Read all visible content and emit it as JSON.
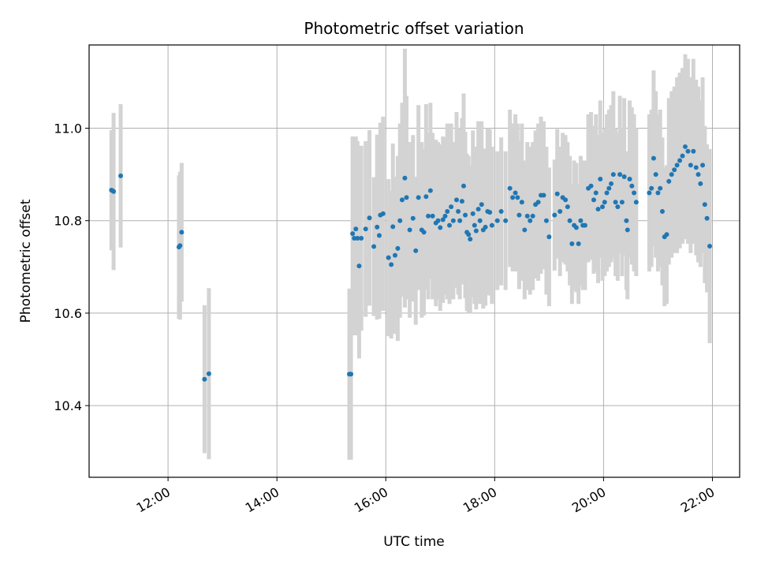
{
  "chart_data": {
    "type": "scatter",
    "title": "Photometric offset variation",
    "xlabel": "UTC time",
    "ylabel": "Photometric offset",
    "x_unit": "hours",
    "xlim": [
      10.55,
      22.5
    ],
    "ylim": [
      10.245,
      11.18
    ],
    "grid": true,
    "x_ticks": [
      {
        "value": 12,
        "label": "12:00"
      },
      {
        "value": 14,
        "label": "14:00"
      },
      {
        "value": 16,
        "label": "16:00"
      },
      {
        "value": 18,
        "label": "18:00"
      },
      {
        "value": 20,
        "label": "20:00"
      },
      {
        "value": 22,
        "label": "22:00"
      }
    ],
    "y_ticks": [
      {
        "value": 10.4,
        "label": "10.4"
      },
      {
        "value": 10.6,
        "label": "10.6"
      },
      {
        "value": 10.8,
        "label": "10.8"
      },
      {
        "value": 11.0,
        "label": "11.0"
      }
    ],
    "point_color": "#1f77b4",
    "errorbar_color": "#d3d3d3",
    "points": [
      {
        "x": 10.96,
        "y": 10.866,
        "err": 0.13
      },
      {
        "x": 10.98,
        "y": 10.865,
        "err": 0.12
      },
      {
        "x": 11.0,
        "y": 10.863,
        "err": 0.17
      },
      {
        "x": 11.13,
        "y": 10.897,
        "err": 0.155
      },
      {
        "x": 12.2,
        "y": 10.743,
        "err": 0.155
      },
      {
        "x": 12.22,
        "y": 10.746,
        "err": 0.16
      },
      {
        "x": 12.25,
        "y": 10.775,
        "err": 0.15
      },
      {
        "x": 12.67,
        "y": 10.457,
        "err": 0.16
      },
      {
        "x": 12.75,
        "y": 10.469,
        "err": 0.185
      },
      {
        "x": 15.33,
        "y": 10.468,
        "err": 0.185
      },
      {
        "x": 15.36,
        "y": 10.468,
        "err": 0.185
      },
      {
        "x": 15.39,
        "y": 10.772,
        "err": 0.21
      },
      {
        "x": 15.42,
        "y": 10.762,
        "err": 0.21
      },
      {
        "x": 15.45,
        "y": 10.782,
        "err": 0.2
      },
      {
        "x": 15.48,
        "y": 10.762,
        "err": 0.21
      },
      {
        "x": 15.51,
        "y": 10.702,
        "err": 0.2
      },
      {
        "x": 15.55,
        "y": 10.762,
        "err": 0.2
      },
      {
        "x": 15.63,
        "y": 10.782,
        "err": 0.19
      },
      {
        "x": 15.7,
        "y": 10.806,
        "err": 0.19
      },
      {
        "x": 15.78,
        "y": 10.744,
        "err": 0.15
      },
      {
        "x": 15.84,
        "y": 10.786,
        "err": 0.2
      },
      {
        "x": 15.88,
        "y": 10.768,
        "err": 0.18
      },
      {
        "x": 15.9,
        "y": 10.812,
        "err": 0.2
      },
      {
        "x": 15.95,
        "y": 10.815,
        "err": 0.21
      },
      {
        "x": 16.05,
        "y": 10.72,
        "err": 0.17
      },
      {
        "x": 16.1,
        "y": 10.705,
        "err": 0.16
      },
      {
        "x": 16.13,
        "y": 10.787,
        "err": 0.18
      },
      {
        "x": 16.17,
        "y": 10.725,
        "err": 0.17
      },
      {
        "x": 16.22,
        "y": 10.74,
        "err": 0.2
      },
      {
        "x": 16.26,
        "y": 10.8,
        "err": 0.21
      },
      {
        "x": 16.3,
        "y": 10.845,
        "err": 0.21
      },
      {
        "x": 16.35,
        "y": 10.892,
        "err": 0.28
      },
      {
        "x": 16.38,
        "y": 10.85,
        "err": 0.22
      },
      {
        "x": 16.44,
        "y": 10.78,
        "err": 0.19
      },
      {
        "x": 16.5,
        "y": 10.805,
        "err": 0.18
      },
      {
        "x": 16.55,
        "y": 10.735,
        "err": 0.16
      },
      {
        "x": 16.6,
        "y": 10.85,
        "err": 0.2
      },
      {
        "x": 16.66,
        "y": 10.78,
        "err": 0.19
      },
      {
        "x": 16.7,
        "y": 10.775,
        "err": 0.18
      },
      {
        "x": 16.74,
        "y": 10.852,
        "err": 0.2
      },
      {
        "x": 16.78,
        "y": 10.81,
        "err": 0.18
      },
      {
        "x": 16.82,
        "y": 10.865,
        "err": 0.19
      },
      {
        "x": 16.86,
        "y": 10.81,
        "err": 0.18
      },
      {
        "x": 16.92,
        "y": 10.795,
        "err": 0.18
      },
      {
        "x": 16.96,
        "y": 10.8,
        "err": 0.17
      },
      {
        "x": 17.0,
        "y": 10.785,
        "err": 0.18
      },
      {
        "x": 17.05,
        "y": 10.802,
        "err": 0.18
      },
      {
        "x": 17.09,
        "y": 10.81,
        "err": 0.17
      },
      {
        "x": 17.13,
        "y": 10.82,
        "err": 0.19
      },
      {
        "x": 17.17,
        "y": 10.79,
        "err": 0.17
      },
      {
        "x": 17.2,
        "y": 10.83,
        "err": 0.18
      },
      {
        "x": 17.24,
        "y": 10.8,
        "err": 0.17
      },
      {
        "x": 17.3,
        "y": 10.845,
        "err": 0.19
      },
      {
        "x": 17.33,
        "y": 10.82,
        "err": 0.18
      },
      {
        "x": 17.36,
        "y": 10.8,
        "err": 0.17
      },
      {
        "x": 17.4,
        "y": 10.842,
        "err": 0.18
      },
      {
        "x": 17.43,
        "y": 10.875,
        "err": 0.2
      },
      {
        "x": 17.46,
        "y": 10.812,
        "err": 0.18
      },
      {
        "x": 17.49,
        "y": 10.775,
        "err": 0.17
      },
      {
        "x": 17.52,
        "y": 10.77,
        "err": 0.17
      },
      {
        "x": 17.55,
        "y": 10.76,
        "err": 0.16
      },
      {
        "x": 17.6,
        "y": 10.815,
        "err": 0.18
      },
      {
        "x": 17.63,
        "y": 10.79,
        "err": 0.17
      },
      {
        "x": 17.66,
        "y": 10.778,
        "err": 0.17
      },
      {
        "x": 17.7,
        "y": 10.825,
        "err": 0.19
      },
      {
        "x": 17.73,
        "y": 10.8,
        "err": 0.18
      },
      {
        "x": 17.76,
        "y": 10.835,
        "err": 0.18
      },
      {
        "x": 17.79,
        "y": 10.78,
        "err": 0.17
      },
      {
        "x": 17.83,
        "y": 10.786,
        "err": 0.17
      },
      {
        "x": 17.87,
        "y": 10.82,
        "err": 0.18
      },
      {
        "x": 17.91,
        "y": 10.818,
        "err": 0.18
      },
      {
        "x": 17.95,
        "y": 10.79,
        "err": 0.17
      },
      {
        "x": 18.05,
        "y": 10.8,
        "err": 0.15
      },
      {
        "x": 18.12,
        "y": 10.82,
        "err": 0.16
      },
      {
        "x": 18.2,
        "y": 10.8,
        "err": 0.15
      },
      {
        "x": 18.28,
        "y": 10.87,
        "err": 0.17
      },
      {
        "x": 18.33,
        "y": 10.85,
        "err": 0.16
      },
      {
        "x": 18.38,
        "y": 10.86,
        "err": 0.17
      },
      {
        "x": 18.42,
        "y": 10.85,
        "err": 0.16
      },
      {
        "x": 18.45,
        "y": 10.812,
        "err": 0.16
      },
      {
        "x": 18.5,
        "y": 10.84,
        "err": 0.17
      },
      {
        "x": 18.55,
        "y": 10.78,
        "err": 0.15
      },
      {
        "x": 18.6,
        "y": 10.81,
        "err": 0.16
      },
      {
        "x": 18.65,
        "y": 10.8,
        "err": 0.16
      },
      {
        "x": 18.7,
        "y": 10.81,
        "err": 0.16
      },
      {
        "x": 18.75,
        "y": 10.835,
        "err": 0.16
      },
      {
        "x": 18.8,
        "y": 10.84,
        "err": 0.17
      },
      {
        "x": 18.85,
        "y": 10.855,
        "err": 0.17
      },
      {
        "x": 18.9,
        "y": 10.855,
        "err": 0.16
      },
      {
        "x": 18.95,
        "y": 10.8,
        "err": 0.16
      },
      {
        "x": 19.0,
        "y": 10.765,
        "err": 0.15
      },
      {
        "x": 19.1,
        "y": 10.812,
        "err": 0.12
      },
      {
        "x": 19.15,
        "y": 10.858,
        "err": 0.14
      },
      {
        "x": 19.2,
        "y": 10.82,
        "err": 0.14
      },
      {
        "x": 19.25,
        "y": 10.85,
        "err": 0.14
      },
      {
        "x": 19.3,
        "y": 10.845,
        "err": 0.14
      },
      {
        "x": 19.34,
        "y": 10.83,
        "err": 0.14
      },
      {
        "x": 19.38,
        "y": 10.8,
        "err": 0.14
      },
      {
        "x": 19.42,
        "y": 10.75,
        "err": 0.13
      },
      {
        "x": 19.46,
        "y": 10.79,
        "err": 0.14
      },
      {
        "x": 19.5,
        "y": 10.785,
        "err": 0.14
      },
      {
        "x": 19.54,
        "y": 10.75,
        "err": 0.13
      },
      {
        "x": 19.58,
        "y": 10.8,
        "err": 0.14
      },
      {
        "x": 19.62,
        "y": 10.79,
        "err": 0.14
      },
      {
        "x": 19.66,
        "y": 10.79,
        "err": 0.14
      },
      {
        "x": 19.72,
        "y": 10.87,
        "err": 0.16
      },
      {
        "x": 19.77,
        "y": 10.875,
        "err": 0.16
      },
      {
        "x": 19.82,
        "y": 10.845,
        "err": 0.16
      },
      {
        "x": 19.86,
        "y": 10.86,
        "err": 0.17
      },
      {
        "x": 19.9,
        "y": 10.825,
        "err": 0.16
      },
      {
        "x": 19.94,
        "y": 10.89,
        "err": 0.17
      },
      {
        "x": 19.98,
        "y": 10.83,
        "err": 0.16
      },
      {
        "x": 20.02,
        "y": 10.84,
        "err": 0.16
      },
      {
        "x": 20.06,
        "y": 10.86,
        "err": 0.17
      },
      {
        "x": 20.1,
        "y": 10.87,
        "err": 0.17
      },
      {
        "x": 20.14,
        "y": 10.88,
        "err": 0.17
      },
      {
        "x": 20.18,
        "y": 10.9,
        "err": 0.18
      },
      {
        "x": 20.22,
        "y": 10.84,
        "err": 0.16
      },
      {
        "x": 20.26,
        "y": 10.83,
        "err": 0.16
      },
      {
        "x": 20.3,
        "y": 10.9,
        "err": 0.17
      },
      {
        "x": 20.34,
        "y": 10.84,
        "err": 0.16
      },
      {
        "x": 20.38,
        "y": 10.895,
        "err": 0.17
      },
      {
        "x": 20.42,
        "y": 10.8,
        "err": 0.15
      },
      {
        "x": 20.44,
        "y": 10.78,
        "err": 0.15
      },
      {
        "x": 20.48,
        "y": 10.89,
        "err": 0.17
      },
      {
        "x": 20.52,
        "y": 10.875,
        "err": 0.17
      },
      {
        "x": 20.56,
        "y": 10.86,
        "err": 0.17
      },
      {
        "x": 20.6,
        "y": 10.84,
        "err": 0.16
      },
      {
        "x": 20.84,
        "y": 10.86,
        "err": 0.17
      },
      {
        "x": 20.88,
        "y": 10.87,
        "err": 0.17
      },
      {
        "x": 20.92,
        "y": 10.935,
        "err": 0.19
      },
      {
        "x": 20.96,
        "y": 10.9,
        "err": 0.18
      },
      {
        "x": 21.0,
        "y": 10.86,
        "err": 0.17
      },
      {
        "x": 21.04,
        "y": 10.87,
        "err": 0.17
      },
      {
        "x": 21.08,
        "y": 10.82,
        "err": 0.16
      },
      {
        "x": 21.12,
        "y": 10.765,
        "err": 0.15
      },
      {
        "x": 21.16,
        "y": 10.77,
        "err": 0.15
      },
      {
        "x": 21.2,
        "y": 10.885,
        "err": 0.18
      },
      {
        "x": 21.25,
        "y": 10.9,
        "err": 0.18
      },
      {
        "x": 21.3,
        "y": 10.91,
        "err": 0.18
      },
      {
        "x": 21.35,
        "y": 10.92,
        "err": 0.19
      },
      {
        "x": 21.4,
        "y": 10.93,
        "err": 0.19
      },
      {
        "x": 21.45,
        "y": 10.94,
        "err": 0.19
      },
      {
        "x": 21.5,
        "y": 10.96,
        "err": 0.2
      },
      {
        "x": 21.55,
        "y": 10.95,
        "err": 0.2
      },
      {
        "x": 21.6,
        "y": 10.92,
        "err": 0.19
      },
      {
        "x": 21.65,
        "y": 10.95,
        "err": 0.2
      },
      {
        "x": 21.7,
        "y": 10.915,
        "err": 0.19
      },
      {
        "x": 21.74,
        "y": 10.9,
        "err": 0.19
      },
      {
        "x": 21.78,
        "y": 10.88,
        "err": 0.18
      },
      {
        "x": 21.82,
        "y": 10.92,
        "err": 0.19
      },
      {
        "x": 21.86,
        "y": 10.835,
        "err": 0.17
      },
      {
        "x": 21.9,
        "y": 10.805,
        "err": 0.16
      },
      {
        "x": 21.95,
        "y": 10.745,
        "err": 0.21
      }
    ]
  }
}
